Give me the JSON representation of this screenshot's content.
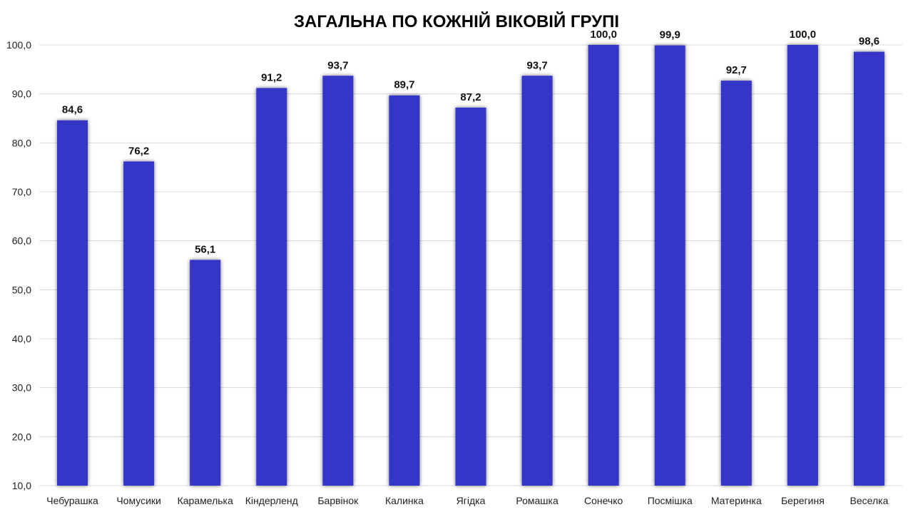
{
  "chart_data": {
    "type": "bar",
    "title": "ЗАГАЛЬНА ПО КОЖНІЙ ВІКОВІЙ ГРУПІ",
    "xlabel": "",
    "ylabel": "",
    "categories": [
      "Чебурашка",
      "Чомусики",
      "Карамелька",
      "Кіндерленд",
      "Барвінок",
      "Калинка",
      "Ягідка",
      "Ромашка",
      "Сонечко",
      "Посмішка",
      "Материнка",
      "Берегиня",
      "Веселка"
    ],
    "values": [
      84.6,
      76.2,
      56.1,
      91.2,
      93.7,
      89.7,
      87.2,
      93.7,
      100.0,
      99.9,
      92.7,
      100.0,
      98.6
    ],
    "value_labels": [
      "84,6",
      "76,2",
      "56,1",
      "91,2",
      "93,7",
      "89,7",
      "87,2",
      "93,7",
      "100,0",
      "99,9",
      "92,7",
      "100,0",
      "98,6"
    ],
    "ylim": [
      10,
      100
    ],
    "yticks": [
      "10,0",
      "20,0",
      "30,0",
      "40,0",
      "50,0",
      "60,0",
      "70,0",
      "80,0",
      "90,0",
      "100,0"
    ],
    "grid": true,
    "legend": "none",
    "colors": {
      "bar": "#3434c8",
      "grid": "#d9d9d9"
    }
  }
}
